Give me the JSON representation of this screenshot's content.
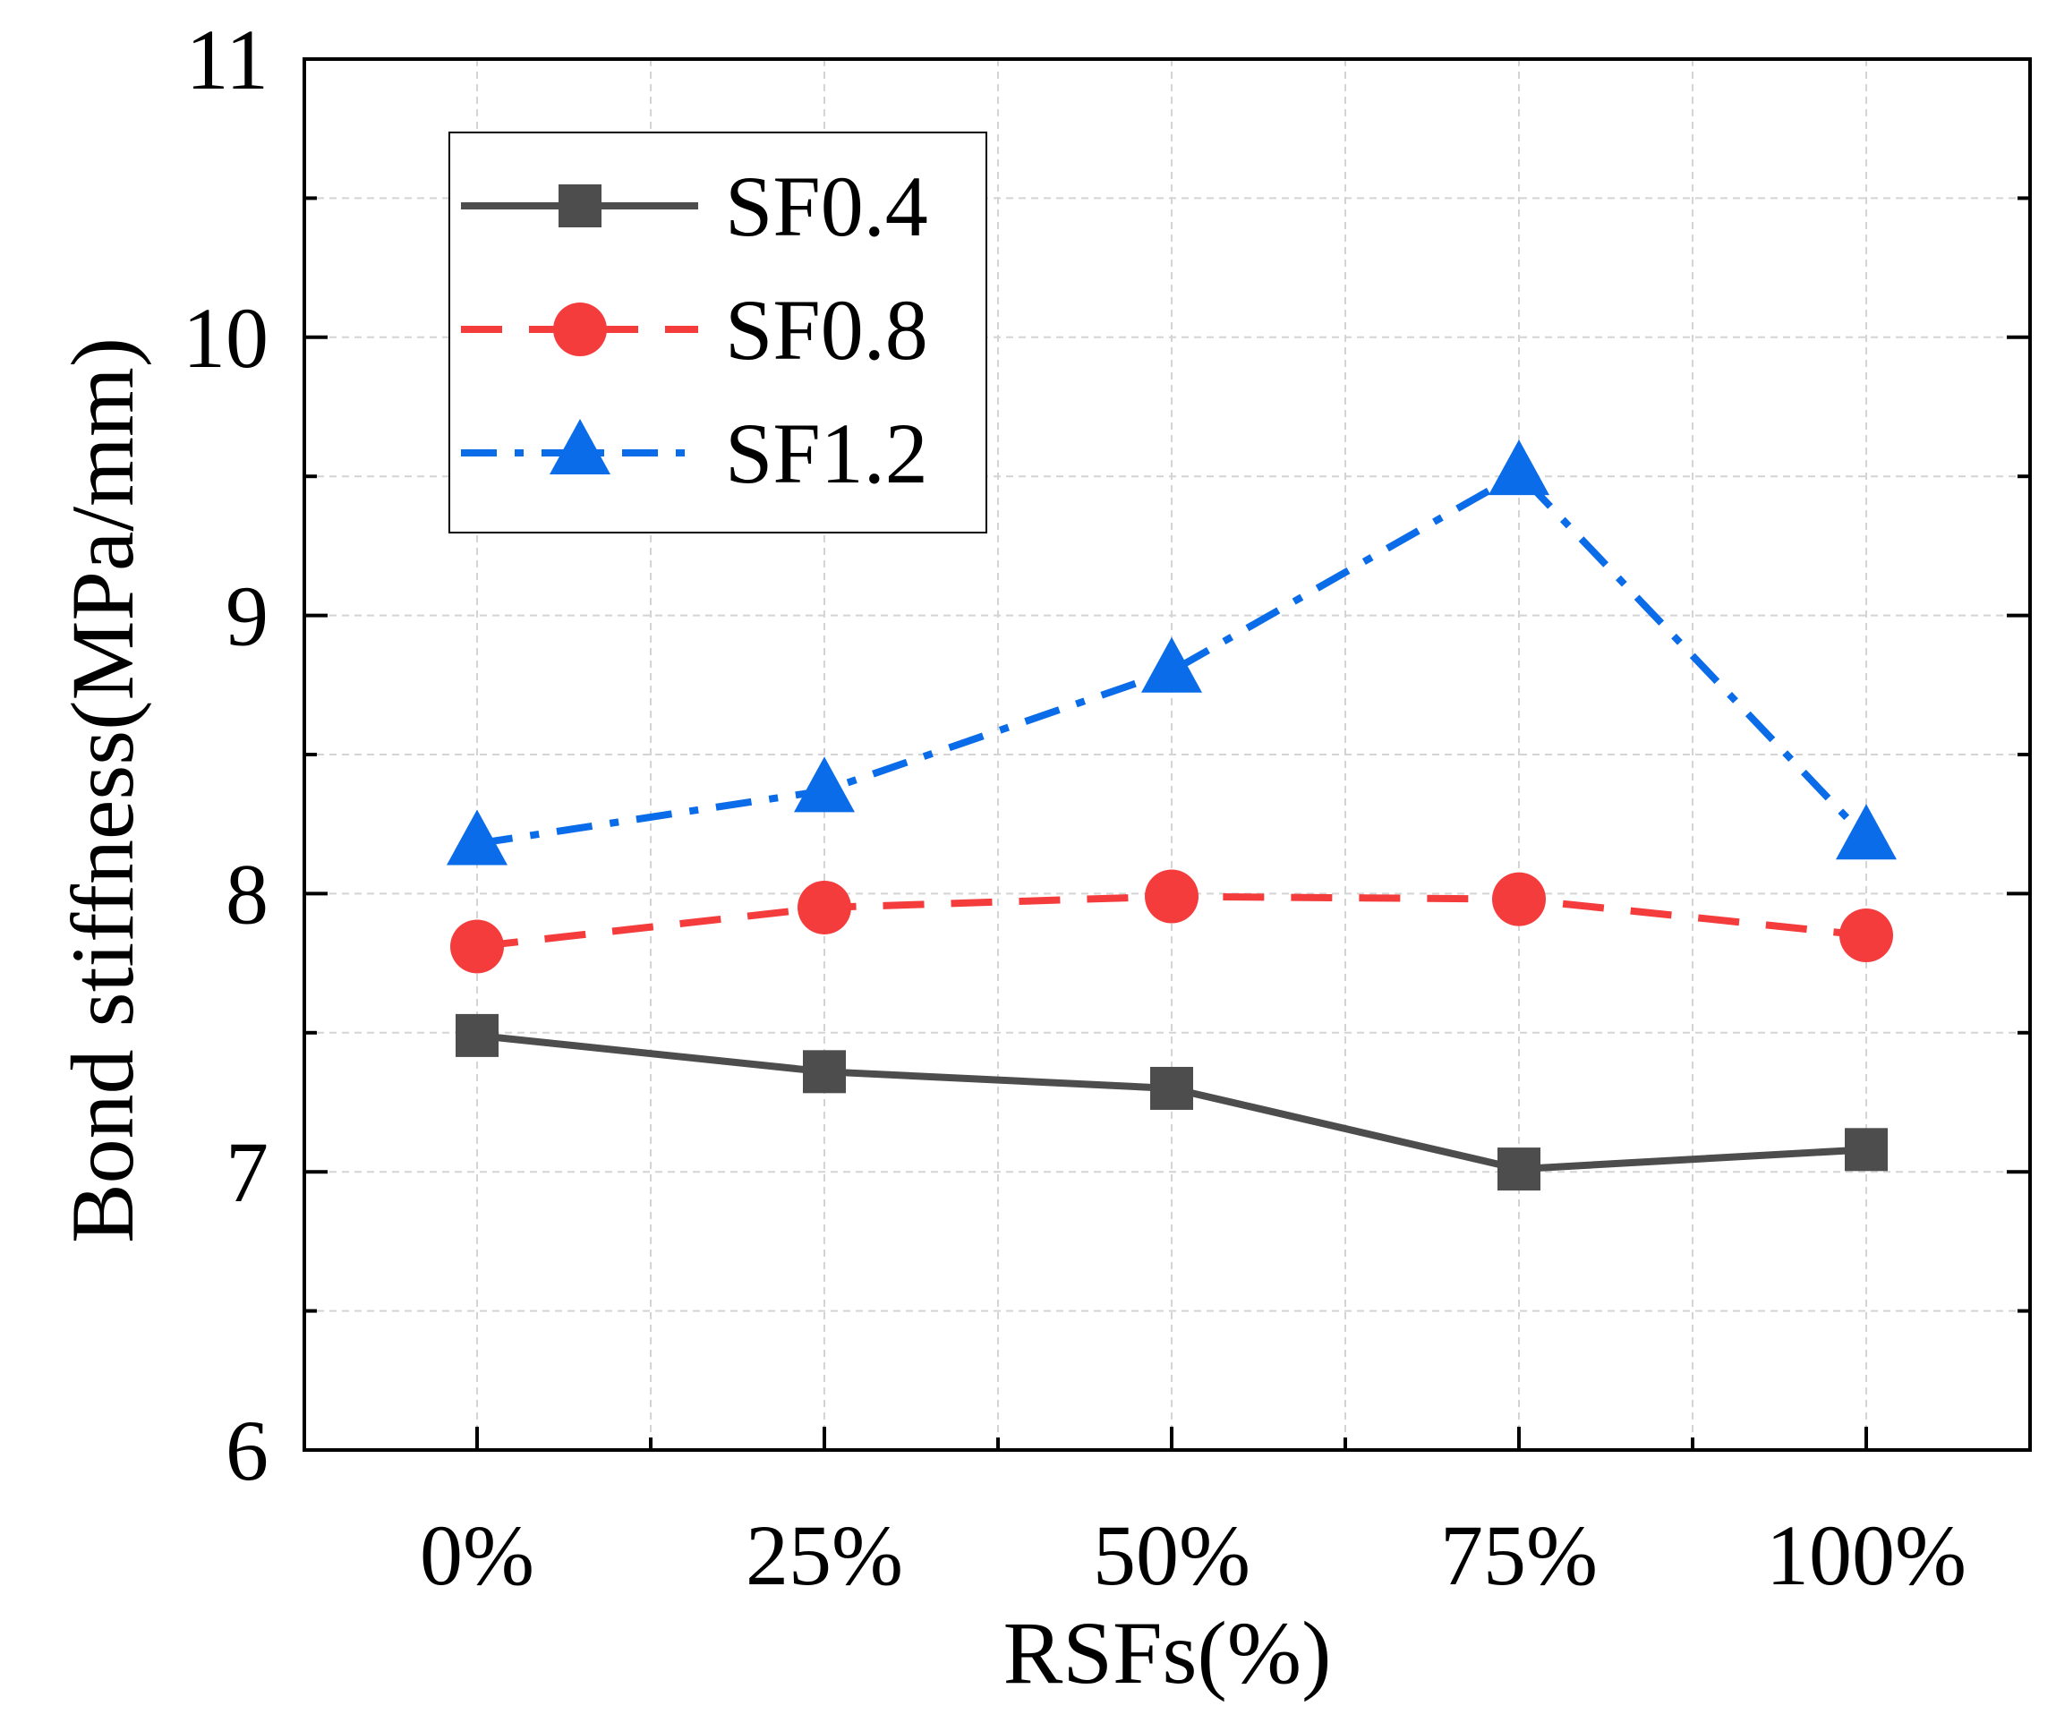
{
  "chart_data": {
    "type": "line",
    "title": "",
    "xlabel": "RSFs(%)",
    "ylabel": "Bond stiffness(MPa/mm)",
    "categories": [
      "0%",
      "25%",
      "50%",
      "75%",
      "100%"
    ],
    "ylim": [
      6,
      11
    ],
    "yticks": [
      "6",
      "7",
      "8",
      "9",
      "10",
      "11"
    ],
    "grid": true,
    "legend_position": "top-left",
    "series": [
      {
        "name": "SF0.4",
        "values": [
          7.49,
          7.36,
          7.3,
          7.01,
          7.08
        ],
        "color": "#4d4d4d",
        "marker": "square",
        "line": "solid"
      },
      {
        "name": "SF0.8",
        "values": [
          7.81,
          7.95,
          7.99,
          7.98,
          7.85
        ],
        "color": "#f53c3c",
        "marker": "circle",
        "line": "dash"
      },
      {
        "name": "SF1.2",
        "values": [
          8.18,
          8.37,
          8.8,
          9.51,
          8.2
        ],
        "color": "#0a6ce8",
        "marker": "triangle",
        "line": "dashdot"
      }
    ]
  }
}
